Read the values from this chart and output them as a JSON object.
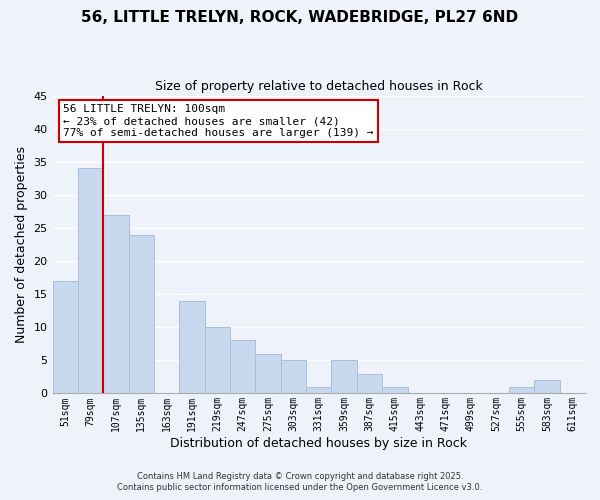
{
  "title": "56, LITTLE TRELYN, ROCK, WADEBRIDGE, PL27 6ND",
  "subtitle": "Size of property relative to detached houses in Rock",
  "xlabel": "Distribution of detached houses by size in Rock",
  "ylabel": "Number of detached properties",
  "bar_color": "#c8d9ef",
  "bar_edge_color": "#a8bfd8",
  "background_color": "#eef2fa",
  "grid_color": "#ffffff",
  "categories": [
    "51sqm",
    "79sqm",
    "107sqm",
    "135sqm",
    "163sqm",
    "191sqm",
    "219sqm",
    "247sqm",
    "275sqm",
    "303sqm",
    "331sqm",
    "359sqm",
    "387sqm",
    "415sqm",
    "443sqm",
    "471sqm",
    "499sqm",
    "527sqm",
    "555sqm",
    "583sqm",
    "611sqm"
  ],
  "values": [
    17,
    34,
    27,
    24,
    0,
    14,
    10,
    8,
    6,
    5,
    1,
    5,
    3,
    1,
    0,
    0,
    0,
    0,
    1,
    2,
    0
  ],
  "ylim": [
    0,
    45
  ],
  "yticks": [
    0,
    5,
    10,
    15,
    20,
    25,
    30,
    35,
    40,
    45
  ],
  "vline_x": 1.5,
  "annotation_title": "56 LITTLE TRELYN: 100sqm",
  "annotation_line1": "← 23% of detached houses are smaller (42)",
  "annotation_line2": "77% of semi-detached houses are larger (139) →",
  "annotation_box_facecolor": "#ffffff",
  "annotation_box_edgecolor": "#cc0000",
  "vertical_line_color": "#cc0000",
  "footer_line1": "Contains HM Land Registry data © Crown copyright and database right 2025.",
  "footer_line2": "Contains public sector information licensed under the Open Government Licence v3.0."
}
